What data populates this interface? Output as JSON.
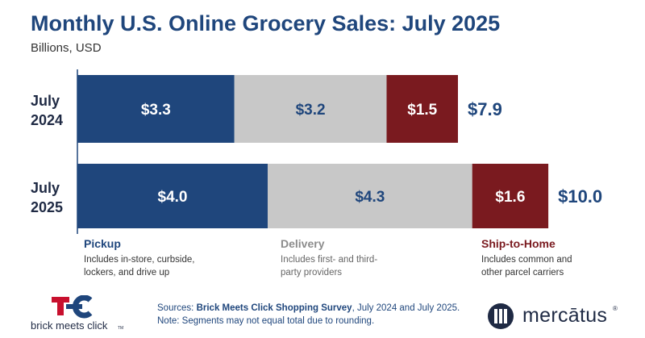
{
  "title": "Monthly U.S. Online Grocery Sales: July 2025",
  "subtitle": "Billions, USD",
  "chart_data": {
    "type": "bar",
    "orientation": "horizontal",
    "stacked": true,
    "title": "Monthly U.S. Online Grocery Sales: July 2025",
    "ylabel": "Billions, USD",
    "categories": [
      {
        "line1": "July",
        "line2": "2024"
      },
      {
        "line1": "July",
        "line2": "2025"
      }
    ],
    "series": [
      {
        "name": "Pickup",
        "values": [
          3.3,
          4.0
        ],
        "labels": [
          "$3.3",
          "$4.0"
        ],
        "color": "#1f467c"
      },
      {
        "name": "Delivery",
        "values": [
          3.2,
          4.3
        ],
        "labels": [
          "$3.2",
          "$4.3"
        ],
        "color": "#c8c8c8"
      },
      {
        "name": "Ship-to-Home",
        "values": [
          1.5,
          1.6
        ],
        "labels": [
          "$1.5",
          "$1.6"
        ],
        "color": "#7a1a1f"
      }
    ],
    "totals": [
      7.9,
      10.0
    ],
    "total_labels": [
      "$7.9",
      "$10.0"
    ],
    "xlim": [
      0,
      10.0
    ],
    "grid": false
  },
  "legend": [
    {
      "name": "Pickup",
      "desc1": "Includes in-store, curbside,",
      "desc2": "lockers, and drive up",
      "color": "#1f467c"
    },
    {
      "name": "Delivery",
      "desc1": "Includes first- and third-",
      "desc2": "party providers",
      "color": "#8c8c8c"
    },
    {
      "name": "Ship-to-Home",
      "desc1": "Includes common and",
      "desc2": "other parcel carriers",
      "color": "#7a1a1f"
    }
  ],
  "footer": {
    "sources_prefix": "Sources: ",
    "sources_bold": "Brick Meets Click Shopping Survey",
    "sources_suffix": ", July 2024 and July 2025.",
    "note": "Note: Segments may not equal total due to rounding."
  },
  "logos": {
    "bmc_text": "brick meets click",
    "bmc_tm": "TM",
    "mercatus_text": "mercātus",
    "mercatus_tm": "®"
  },
  "colors": {
    "title": "#1f467c",
    "pickup": "#1f467c",
    "delivery": "#c8c8c8",
    "ship": "#7a1a1f",
    "axis": "#1f467c"
  }
}
